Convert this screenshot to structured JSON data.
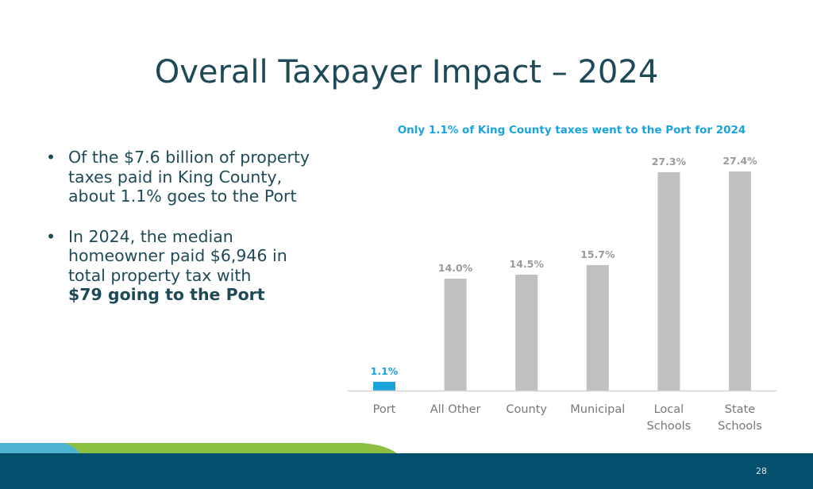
{
  "slide": {
    "title": "Overall Taxpayer Impact – 2024",
    "bullets": [
      {
        "text": "Of the $7.6 billion of property taxes paid in King County, about 1.1% goes to the Port"
      },
      {
        "text": "In 2024, the median homeowner paid $6,946 in total property tax with",
        "bold": "$79 going to the Port"
      }
    ],
    "page_number": "28"
  },
  "colors": {
    "title": "#1e4a57",
    "accent": "#1aa3dc",
    "highlight_bar": "#1aa3dc",
    "bar": "#c0c0c0",
    "footer": "#02506e"
  },
  "chart_data": {
    "type": "bar",
    "title": "Only 1.1% of King County taxes went to the Port for 2024",
    "categories": [
      [
        "Port"
      ],
      [
        "All Other"
      ],
      [
        "County"
      ],
      [
        "Municipal"
      ],
      [
        "Local",
        "Schools"
      ],
      [
        "State",
        "Schools"
      ]
    ],
    "values": [
      1.1,
      14.0,
      14.5,
      15.7,
      27.3,
      27.4
    ],
    "value_labels": [
      "1.1%",
      "14.0%",
      "14.5%",
      "15.7%",
      "27.3%",
      "27.4%"
    ],
    "highlight_index": 0,
    "xlabel": "",
    "ylabel": "",
    "ylim": [
      0,
      30
    ],
    "grid": false
  }
}
